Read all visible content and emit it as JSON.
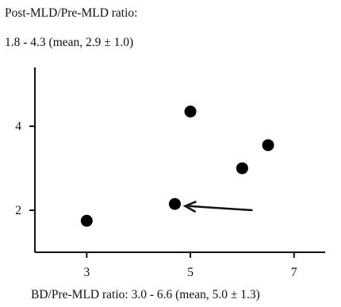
{
  "chart_data": {
    "type": "scatter",
    "y_title_lines": [
      "Post-MLD/Pre-MLD ratio:",
      "1.8 - 4.3 (mean, 2.9 ± 1.0)"
    ],
    "x_title": "BD/Pre-MLD ratio: 3.0 - 6.6 (mean, 5.0 ± 1.3)",
    "x_ticks": [
      3,
      5,
      7
    ],
    "y_ticks": [
      2,
      4
    ],
    "xlim": [
      2.0,
      7.6
    ],
    "ylim": [
      1.0,
      5.4
    ],
    "points": [
      {
        "x": 3.0,
        "y": 1.75
      },
      {
        "x": 4.7,
        "y": 2.15
      },
      {
        "x": 5.0,
        "y": 4.35
      },
      {
        "x": 6.0,
        "y": 3.0
      },
      {
        "x": 6.5,
        "y": 3.55
      }
    ],
    "arrow": {
      "from": {
        "x": 6.2,
        "y": 2.0
      },
      "to": {
        "x": 4.9,
        "y": 2.1
      }
    },
    "grid": false,
    "marker_color": "#000000"
  }
}
